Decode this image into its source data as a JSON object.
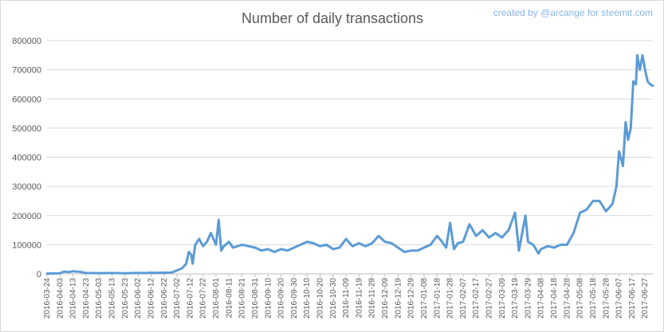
{
  "chart_data": {
    "type": "line",
    "title": "Number of daily transactions",
    "credit": "created by @arcange for steemit.com",
    "xlabel": "",
    "ylabel": "",
    "ylim": [
      0,
      800000
    ],
    "yticks": [
      0,
      100000,
      200000,
      300000,
      400000,
      500000,
      600000,
      700000,
      800000
    ],
    "ytick_labels": [
      "0",
      "100000",
      "200000",
      "300000",
      "400000",
      "500000",
      "600000",
      "700000",
      "800000"
    ],
    "grid": true,
    "legend": "none",
    "xrange": [
      "2016-03-24",
      "2017-07-03"
    ],
    "x_ticks": [
      "2016-03-24",
      "2016-04-03",
      "2016-04-13",
      "2016-04-23",
      "2016-05-03",
      "2016-05-13",
      "2016-05-23",
      "2016-06-02",
      "2016-06-12",
      "2016-06-22",
      "2016-07-02",
      "2016-07-12",
      "2016-07-22",
      "2016-08-01",
      "2016-08-11",
      "2016-08-21",
      "2016-08-31",
      "2016-09-10",
      "2016-09-20",
      "2016-09-30",
      "2016-10-10",
      "2016-10-20",
      "2016-10-30",
      "2016-11-09",
      "2016-11-19",
      "2016-11-29",
      "2016-12-09",
      "2016-12-19",
      "2016-12-29",
      "2017-01-08",
      "2017-01-18",
      "2017-01-28",
      "2017-02-07",
      "2017-02-17",
      "2017-02-27",
      "2017-03-09",
      "2017-03-19",
      "2017-03-29",
      "2017-04-08",
      "2017-04-18",
      "2017-04-28",
      "2017-05-08",
      "2017-05-18",
      "2017-05-28",
      "2017-06-07",
      "2017-06-17",
      "2017-06-27"
    ],
    "series": [
      {
        "color": "#5b9bd5",
        "points": [
          [
            "2016-03-24",
            1000
          ],
          [
            "2016-04-03",
            2000
          ],
          [
            "2016-04-06",
            8000
          ],
          [
            "2016-04-10",
            6000
          ],
          [
            "2016-04-13",
            9000
          ],
          [
            "2016-04-18",
            7000
          ],
          [
            "2016-04-23",
            3000
          ],
          [
            "2016-05-03",
            2500
          ],
          [
            "2016-05-13",
            3000
          ],
          [
            "2016-05-23",
            2000
          ],
          [
            "2016-06-02",
            3500
          ],
          [
            "2016-06-08",
            3000
          ],
          [
            "2016-06-12",
            4000
          ],
          [
            "2016-06-18",
            3500
          ],
          [
            "2016-06-22",
            4000
          ],
          [
            "2016-06-28",
            5000
          ],
          [
            "2016-07-02",
            12000
          ],
          [
            "2016-07-06",
            20000
          ],
          [
            "2016-07-09",
            35000
          ],
          [
            "2016-07-11",
            75000
          ],
          [
            "2016-07-13",
            65000
          ],
          [
            "2016-07-14",
            35000
          ],
          [
            "2016-07-16",
            100000
          ],
          [
            "2016-07-19",
            120000
          ],
          [
            "2016-07-22",
            95000
          ],
          [
            "2016-07-25",
            110000
          ],
          [
            "2016-07-28",
            140000
          ],
          [
            "2016-07-31",
            110000
          ],
          [
            "2016-08-01",
            100000
          ],
          [
            "2016-08-03",
            185000
          ],
          [
            "2016-08-05",
            80000
          ],
          [
            "2016-08-07",
            95000
          ],
          [
            "2016-08-11",
            110000
          ],
          [
            "2016-08-14",
            90000
          ],
          [
            "2016-08-21",
            100000
          ],
          [
            "2016-08-26",
            95000
          ],
          [
            "2016-08-31",
            90000
          ],
          [
            "2016-09-05",
            80000
          ],
          [
            "2016-09-10",
            85000
          ],
          [
            "2016-09-15",
            75000
          ],
          [
            "2016-09-20",
            85000
          ],
          [
            "2016-09-25",
            80000
          ],
          [
            "2016-09-30",
            90000
          ],
          [
            "2016-10-05",
            100000
          ],
          [
            "2016-10-10",
            110000
          ],
          [
            "2016-10-15",
            105000
          ],
          [
            "2016-10-20",
            95000
          ],
          [
            "2016-10-25",
            100000
          ],
          [
            "2016-10-30",
            85000
          ],
          [
            "2016-11-04",
            90000
          ],
          [
            "2016-11-09",
            120000
          ],
          [
            "2016-11-14",
            95000
          ],
          [
            "2016-11-19",
            105000
          ],
          [
            "2016-11-24",
            95000
          ],
          [
            "2016-11-29",
            105000
          ],
          [
            "2016-12-04",
            130000
          ],
          [
            "2016-12-09",
            110000
          ],
          [
            "2016-12-14",
            105000
          ],
          [
            "2016-12-19",
            90000
          ],
          [
            "2016-12-24",
            75000
          ],
          [
            "2016-12-29",
            80000
          ],
          [
            "2017-01-03",
            80000
          ],
          [
            "2017-01-08",
            90000
          ],
          [
            "2017-01-13",
            100000
          ],
          [
            "2017-01-18",
            130000
          ],
          [
            "2017-01-21",
            115000
          ],
          [
            "2017-01-25",
            90000
          ],
          [
            "2017-01-28",
            175000
          ],
          [
            "2017-01-31",
            85000
          ],
          [
            "2017-02-03",
            105000
          ],
          [
            "2017-02-07",
            110000
          ],
          [
            "2017-02-12",
            170000
          ],
          [
            "2017-02-17",
            130000
          ],
          [
            "2017-02-22",
            150000
          ],
          [
            "2017-02-27",
            125000
          ],
          [
            "2017-03-04",
            140000
          ],
          [
            "2017-03-09",
            125000
          ],
          [
            "2017-03-14",
            150000
          ],
          [
            "2017-03-19",
            210000
          ],
          [
            "2017-03-22",
            80000
          ],
          [
            "2017-03-27",
            200000
          ],
          [
            "2017-03-29",
            110000
          ],
          [
            "2017-04-02",
            100000
          ],
          [
            "2017-04-06",
            70000
          ],
          [
            "2017-04-08",
            85000
          ],
          [
            "2017-04-13",
            95000
          ],
          [
            "2017-04-18",
            90000
          ],
          [
            "2017-04-23",
            100000
          ],
          [
            "2017-04-28",
            100000
          ],
          [
            "2017-05-03",
            140000
          ],
          [
            "2017-05-08",
            210000
          ],
          [
            "2017-05-13",
            220000
          ],
          [
            "2017-05-18",
            250000
          ],
          [
            "2017-05-23",
            250000
          ],
          [
            "2017-05-28",
            215000
          ],
          [
            "2017-06-02",
            240000
          ],
          [
            "2017-06-05",
            300000
          ],
          [
            "2017-06-07",
            420000
          ],
          [
            "2017-06-10",
            370000
          ],
          [
            "2017-06-12",
            520000
          ],
          [
            "2017-06-14",
            460000
          ],
          [
            "2017-06-16",
            500000
          ],
          [
            "2017-06-18",
            660000
          ],
          [
            "2017-06-20",
            650000
          ],
          [
            "2017-06-21",
            750000
          ],
          [
            "2017-06-23",
            700000
          ],
          [
            "2017-06-25",
            750000
          ],
          [
            "2017-06-27",
            700000
          ],
          [
            "2017-06-29",
            660000
          ],
          [
            "2017-07-01",
            650000
          ],
          [
            "2017-07-03",
            645000
          ]
        ]
      }
    ]
  }
}
